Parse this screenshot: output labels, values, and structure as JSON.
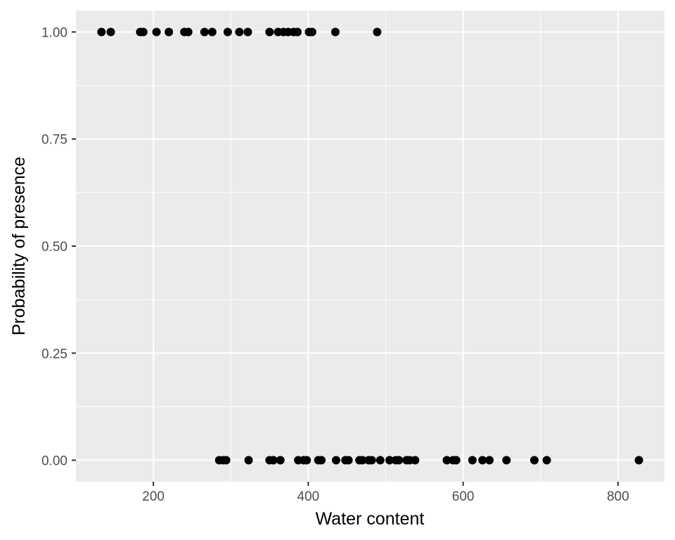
{
  "chart_data": {
    "type": "scatter",
    "title": "",
    "xlabel": "Water content",
    "ylabel": "Probability of presence",
    "xlim": [
      100,
      860
    ],
    "ylim": [
      -0.05,
      1.05
    ],
    "x_ticks": [
      200,
      400,
      600,
      800
    ],
    "x_tick_labels": [
      "200",
      "400",
      "600",
      "800"
    ],
    "y_ticks": [
      0,
      0.25,
      0.5,
      0.75,
      1
    ],
    "y_tick_labels": [
      "0.00",
      "0.25",
      "0.50",
      "0.75",
      "1.00"
    ],
    "grid": true,
    "legend": "none",
    "colors": {
      "panel": "#ebebeb",
      "grid": "#ffffff",
      "points": "#000000",
      "tick": "#333333"
    },
    "points": [
      {
        "x": 133,
        "y": 1
      },
      {
        "x": 145,
        "y": 1
      },
      {
        "x": 183,
        "y": 1
      },
      {
        "x": 187,
        "y": 1
      },
      {
        "x": 204,
        "y": 1
      },
      {
        "x": 220,
        "y": 1
      },
      {
        "x": 240,
        "y": 1
      },
      {
        "x": 245,
        "y": 1
      },
      {
        "x": 266,
        "y": 1
      },
      {
        "x": 276,
        "y": 1
      },
      {
        "x": 296,
        "y": 1
      },
      {
        "x": 311,
        "y": 1
      },
      {
        "x": 322,
        "y": 1
      },
      {
        "x": 350,
        "y": 1
      },
      {
        "x": 361,
        "y": 1
      },
      {
        "x": 368,
        "y": 1
      },
      {
        "x": 374,
        "y": 1
      },
      {
        "x": 381,
        "y": 1
      },
      {
        "x": 386,
        "y": 1
      },
      {
        "x": 401,
        "y": 1
      },
      {
        "x": 405,
        "y": 1
      },
      {
        "x": 435,
        "y": 1
      },
      {
        "x": 489,
        "y": 1
      },
      {
        "x": 285,
        "y": 0
      },
      {
        "x": 290,
        "y": 0
      },
      {
        "x": 294,
        "y": 0
      },
      {
        "x": 323,
        "y": 0
      },
      {
        "x": 350,
        "y": 0
      },
      {
        "x": 355,
        "y": 0
      },
      {
        "x": 364,
        "y": 0
      },
      {
        "x": 387,
        "y": 0
      },
      {
        "x": 394,
        "y": 0
      },
      {
        "x": 398,
        "y": 0
      },
      {
        "x": 413,
        "y": 0
      },
      {
        "x": 417,
        "y": 0
      },
      {
        "x": 436,
        "y": 0
      },
      {
        "x": 448,
        "y": 0
      },
      {
        "x": 452,
        "y": 0
      },
      {
        "x": 466,
        "y": 0
      },
      {
        "x": 470,
        "y": 0
      },
      {
        "x": 478,
        "y": 0
      },
      {
        "x": 482,
        "y": 0
      },
      {
        "x": 493,
        "y": 0
      },
      {
        "x": 505,
        "y": 0
      },
      {
        "x": 513,
        "y": 0
      },
      {
        "x": 517,
        "y": 0
      },
      {
        "x": 527,
        "y": 0
      },
      {
        "x": 531,
        "y": 0
      },
      {
        "x": 538,
        "y": 0
      },
      {
        "x": 579,
        "y": 0
      },
      {
        "x": 587,
        "y": 0
      },
      {
        "x": 591,
        "y": 0
      },
      {
        "x": 612,
        "y": 0
      },
      {
        "x": 625,
        "y": 0
      },
      {
        "x": 634,
        "y": 0
      },
      {
        "x": 656,
        "y": 0
      },
      {
        "x": 692,
        "y": 0
      },
      {
        "x": 708,
        "y": 0
      },
      {
        "x": 827,
        "y": 0
      }
    ]
  }
}
